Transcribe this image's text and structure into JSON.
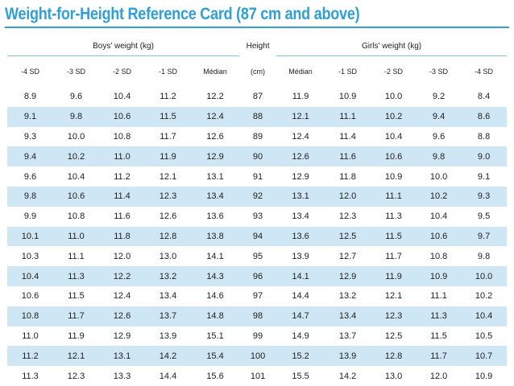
{
  "title": "Weight-for-Height Reference Card (87 cm and above)",
  "header": {
    "boys_group": "Boys' weight (kg)",
    "height_label": "Height",
    "girls_group": "Girls' weight (kg)",
    "boys_columns": [
      "-4 SD",
      "-3 SD",
      "-2 SD",
      "-1 SD",
      "Médian"
    ],
    "height_unit": "(cm)",
    "girls_columns": [
      "Médian",
      "-1 SD",
      "-2 SD",
      "-3 SD",
      "-4 SD"
    ]
  },
  "rows": [
    [
      "8.9",
      "9.6",
      "10.4",
      "11.2",
      "12.2",
      "87",
      "11.9",
      "10.9",
      "10.0",
      "9.2",
      "8.4"
    ],
    [
      "9.1",
      "9.8",
      "10.6",
      "11.5",
      "12.4",
      "88",
      "12.1",
      "11.1",
      "10.2",
      "9.4",
      "8.6"
    ],
    [
      "9.3",
      "10.0",
      "10.8",
      "11.7",
      "12.6",
      "89",
      "12.4",
      "11.4",
      "10.4",
      "9.6",
      "8.8"
    ],
    [
      "9.4",
      "10.2",
      "11.0",
      "11.9",
      "12.9",
      "90",
      "12.6",
      "11.6",
      "10.6",
      "9.8",
      "9.0"
    ],
    [
      "9.6",
      "10.4",
      "11.2",
      "12.1",
      "13.1",
      "91",
      "12.9",
      "11.8",
      "10.9",
      "10.0",
      "9.1"
    ],
    [
      "9.8",
      "10.6",
      "11.4",
      "12.3",
      "13.4",
      "92",
      "13.1",
      "12.0",
      "11.1",
      "10.2",
      "9.3"
    ],
    [
      "9.9",
      "10.8",
      "11.6",
      "12.6",
      "13.6",
      "93",
      "13.4",
      "12.3",
      "11.3",
      "10.4",
      "9.5"
    ],
    [
      "10.1",
      "11.0",
      "11.8",
      "12.8",
      "13.8",
      "94",
      "13.6",
      "12.5",
      "11.5",
      "10.6",
      "9.7"
    ],
    [
      "10.3",
      "11.1",
      "12.0",
      "13.0",
      "14.1",
      "95",
      "13.9",
      "12.7",
      "11.7",
      "10.8",
      "9.8"
    ],
    [
      "10.4",
      "11.3",
      "12.2",
      "13.2",
      "14.3",
      "96",
      "14.1",
      "12.9",
      "11.9",
      "10.9",
      "10.0"
    ],
    [
      "10.6",
      "11.5",
      "12.4",
      "13.4",
      "14.6",
      "97",
      "14.4",
      "13.2",
      "12.1",
      "11.1",
      "10.2"
    ],
    [
      "10.8",
      "11.7",
      "12.6",
      "13.7",
      "14.8",
      "98",
      "14.7",
      "13.4",
      "12.3",
      "11.3",
      "10.4"
    ],
    [
      "11.0",
      "11.9",
      "12.9",
      "13.9",
      "15.1",
      "99",
      "14.9",
      "13.7",
      "12.5",
      "11.5",
      "10.5"
    ],
    [
      "11.2",
      "12.1",
      "13.1",
      "14.2",
      "15.4",
      "100",
      "15.2",
      "13.9",
      "12.8",
      "11.7",
      "10.7"
    ],
    [
      "11.3",
      "12.3",
      "13.3",
      "14.4",
      "15.6",
      "101",
      "15.5",
      "14.2",
      "13.0",
      "12.0",
      "10.9"
    ]
  ],
  "colors": {
    "accent": "#2f9fd5",
    "stripe": "#cfe6f5"
  }
}
